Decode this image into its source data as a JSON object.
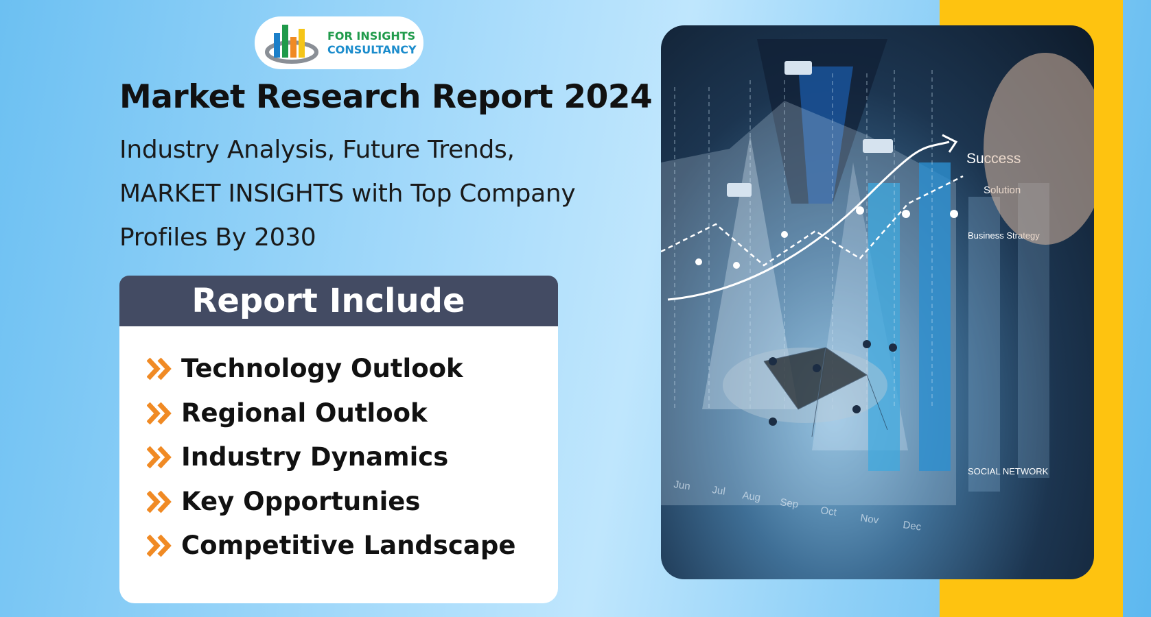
{
  "brand": {
    "line1": "FOR INSIGHTS",
    "line2": "CONSULTANCY"
  },
  "title": "Market Research Report 2024",
  "subtitle": [
    "Industry Analysis, Future Trends,",
    "MARKET INSIGHTS with Top Company",
    "Profiles By 2030"
  ],
  "report": {
    "heading": "Report Include",
    "items": [
      "Technology Outlook",
      "Regional Outlook",
      "Industry Dynamics",
      "Key Opportunies",
      "Competitive Landscape"
    ]
  },
  "photo": {
    "labels": {
      "success": "Success",
      "solution": "Solution",
      "strategy": "Business Strategy",
      "social": "SOCIAL NETWORK"
    },
    "months": [
      "Jun",
      "Jul",
      "Aug",
      "Sep",
      "Oct",
      "Nov",
      "Dec"
    ]
  },
  "colors": {
    "accent_band": "#fec310",
    "header_bg": "#434b63",
    "bullet": "#f08a24"
  }
}
